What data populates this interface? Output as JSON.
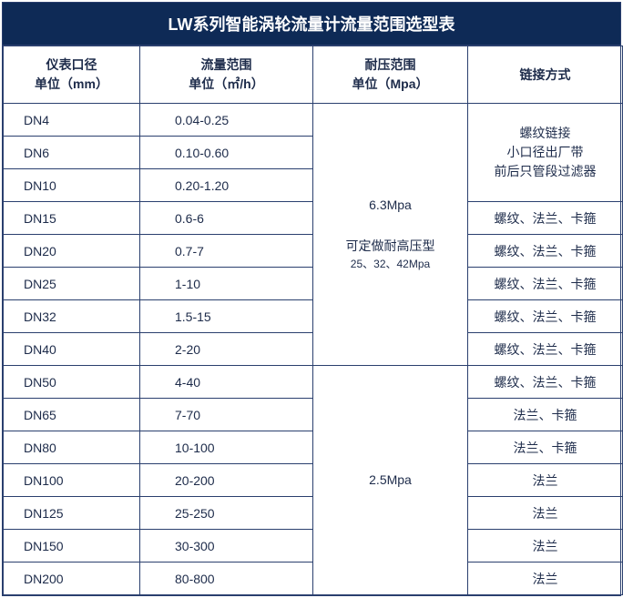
{
  "title": "LW系列智能涡轮流量计流量范围选型表",
  "headers": {
    "c1l1": "仪表口径",
    "c1l2": "单位（mm）",
    "c2l1": "流量范围",
    "c2l2": "单位（㎡/h）",
    "c3l1": "耐压范围",
    "c3l2": "单位（Mpa）",
    "c4": "链接方式"
  },
  "pressure1": {
    "main": "6.3Mpa",
    "sub1": "可定做耐高压型",
    "sub2": "25、32、42Mpa"
  },
  "pressure2": "2.5Mpa",
  "conn_small": {
    "l1": "螺纹链接",
    "l2": "小口径出厂带",
    "l3": "前后只管段过滤器"
  },
  "rows": [
    {
      "d": "DN4",
      "f": "0.04-0.25",
      "c": ""
    },
    {
      "d": "DN6",
      "f": "0.10-0.60",
      "c": ""
    },
    {
      "d": "DN10",
      "f": "0.20-1.20",
      "c": ""
    },
    {
      "d": "DN15",
      "f": "0.6-6",
      "c": "螺纹、法兰、卡箍"
    },
    {
      "d": "DN20",
      "f": "0.7-7",
      "c": "螺纹、法兰、卡箍"
    },
    {
      "d": "DN25",
      "f": "1-10",
      "c": "螺纹、法兰、卡箍"
    },
    {
      "d": "DN32",
      "f": "1.5-15",
      "c": "螺纹、法兰、卡箍"
    },
    {
      "d": "DN40",
      "f": "2-20",
      "c": "螺纹、法兰、卡箍"
    },
    {
      "d": "DN50",
      "f": "4-40",
      "c": "螺纹、法兰、卡箍"
    },
    {
      "d": "DN65",
      "f": "7-70",
      "c": "法兰、卡箍"
    },
    {
      "d": "DN80",
      "f": "10-100",
      "c": "法兰、卡箍"
    },
    {
      "d": "DN100",
      "f": "20-200",
      "c": "法兰"
    },
    {
      "d": "DN125",
      "f": "25-250",
      "c": "法兰"
    },
    {
      "d": "DN150",
      "f": "30-300",
      "c": "法兰"
    },
    {
      "d": "DN200",
      "f": "80-800",
      "c": "法兰"
    }
  ],
  "colors": {
    "header_bg": "#0e2a56",
    "border": "#2a3f6e",
    "text": "#1d2b4a"
  }
}
